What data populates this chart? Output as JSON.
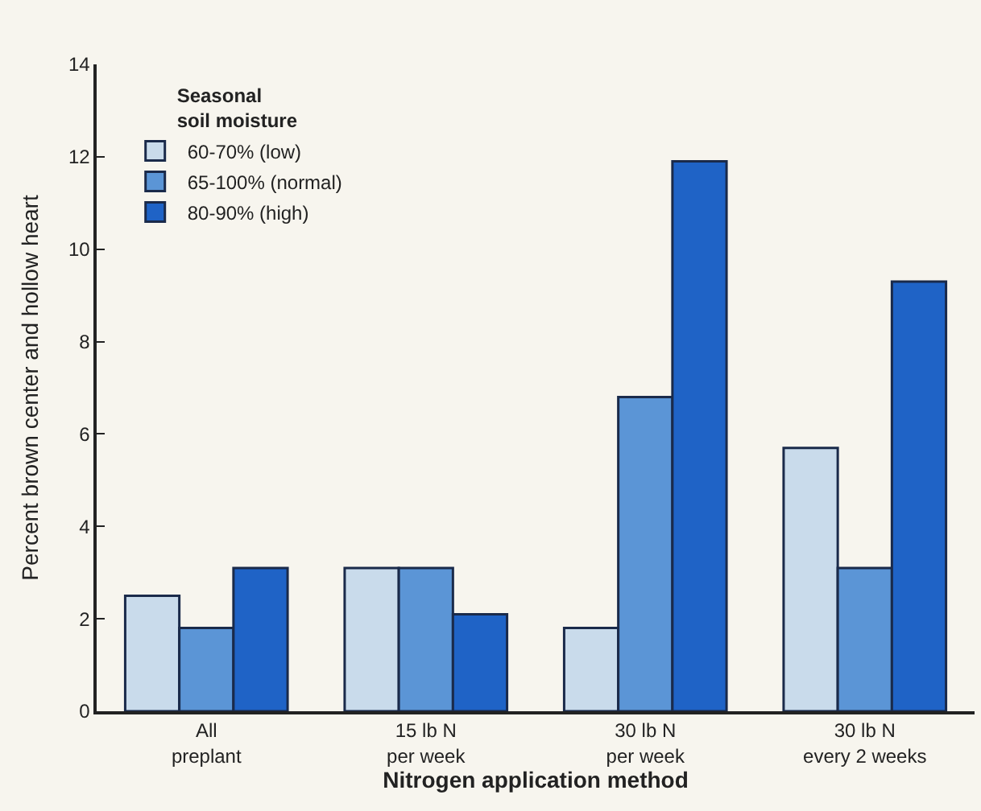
{
  "chart_data": {
    "type": "bar",
    "xlabel": "Nitrogen application method",
    "ylabel": "Percent brown center and hollow heart",
    "legend_title": "Seasonal\nsoil moisture",
    "categories": [
      "All\npreplant",
      "15 lb N\nper week",
      "30 lb N\nper week",
      "30 lb N\nevery 2 weeks"
    ],
    "series": [
      {
        "name": "60-70% (low)",
        "color": "#c9dbeb",
        "values": [
          2.5,
          3.1,
          1.8,
          5.7
        ]
      },
      {
        "name": "65-100% (normal)",
        "color": "#5b95d6",
        "values": [
          1.8,
          3.1,
          6.8,
          3.1
        ]
      },
      {
        "name": "80-90% (high)",
        "color": "#1f63c6",
        "values": [
          3.1,
          2.1,
          11.9,
          9.3
        ]
      }
    ],
    "ylim": [
      0,
      14
    ],
    "yticks": [
      0,
      2,
      4,
      6,
      8,
      10,
      12,
      14
    ],
    "grid": false,
    "legend": "top left"
  }
}
